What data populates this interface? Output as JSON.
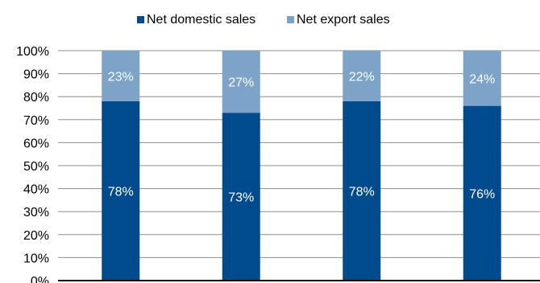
{
  "chart_data": {
    "type": "bar",
    "stacked": true,
    "categories": [
      "",
      "",
      "",
      ""
    ],
    "series": [
      {
        "name": "Net domestic sales",
        "values": [
          78,
          73,
          78,
          76
        ],
        "color": "#004B8D",
        "labels": [
          "78%",
          "73%",
          "78%",
          "76%"
        ]
      },
      {
        "name": "Net export sales",
        "values": [
          23,
          27,
          22,
          24
        ],
        "color": "#7EA3C8",
        "labels": [
          "23%",
          "27%",
          "22%",
          "24%"
        ]
      }
    ],
    "title": "",
    "xlabel": "",
    "ylabel": "",
    "ylim": [
      0,
      100
    ],
    "yticks": [
      "0%",
      "10%",
      "20%",
      "30%",
      "40%",
      "50%",
      "60%",
      "70%",
      "80%",
      "90%",
      "100%"
    ],
    "grid": true,
    "legend_position": "top-center",
    "data_label_color": "#ffffff",
    "axis_text_color": "#000000",
    "grid_color": "#8c8c8c"
  }
}
